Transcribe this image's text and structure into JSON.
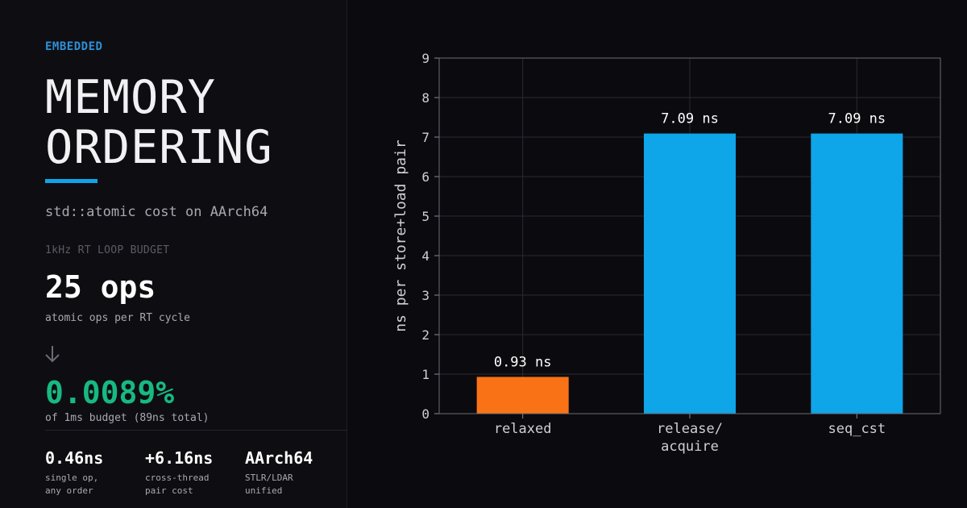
{
  "left": {
    "kicker": "EMBEDDED",
    "title_lines": [
      "MEMORY",
      "ORDERING"
    ],
    "subtitle": "std::atomic cost on AArch64",
    "budget_label": "1kHz RT LOOP BUDGET",
    "ops_value": "25 ops",
    "ops_caption": "atomic ops per RT cycle",
    "arrow_icon": "arrow-down-icon",
    "percent_value": "0.0089%",
    "percent_caption": "of 1ms budget (89ns total)",
    "stats": [
      {
        "value": "0.46ns",
        "note": "single op,\nany order"
      },
      {
        "value": "+6.16ns",
        "note": "cross-thread\npair cost"
      },
      {
        "value": "AArch64",
        "note": "STLR/LDAR\nunified"
      }
    ],
    "colors": {
      "accent": "#12a3e6",
      "kicker": "#2f8fd6",
      "good": "#18b981"
    }
  },
  "chart_data": {
    "type": "bar",
    "title": "",
    "xlabel": "",
    "ylabel": "ns per store+load pair",
    "ylim": [
      0,
      9
    ],
    "yticks": [
      0,
      1,
      2,
      3,
      4,
      5,
      6,
      7,
      8,
      9
    ],
    "grid": true,
    "categories": [
      "relaxed",
      "release/\nacquire",
      "seq_cst"
    ],
    "values": [
      0.93,
      7.09,
      7.09
    ],
    "data_labels": [
      "0.93 ns",
      "7.09 ns",
      "7.09 ns"
    ],
    "colors": [
      "#f97316",
      "#0ea5e9",
      "#0ea5e9"
    ]
  }
}
